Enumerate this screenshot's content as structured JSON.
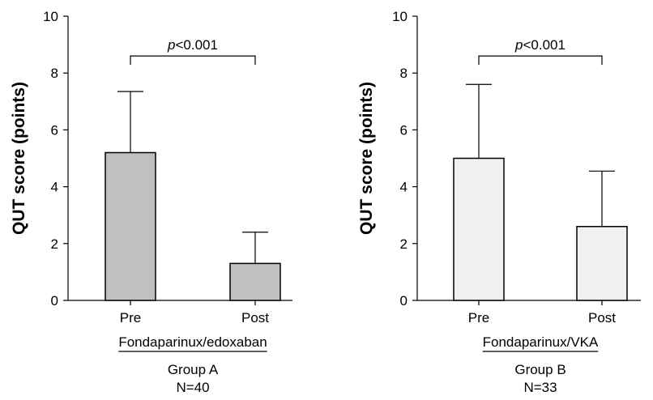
{
  "chart_data": [
    {
      "type": "bar",
      "ylabel": "QUT score (points)",
      "ylim": [
        0,
        10
      ],
      "yticks": [
        "0",
        "2",
        "4",
        "6",
        "8",
        "10"
      ],
      "categories": [
        "Pre",
        "Post"
      ],
      "values": [
        5.2,
        1.3
      ],
      "errors": [
        2.15,
        1.1
      ],
      "bar_color": "#c0c0c0",
      "drug": "Fondaparinux/edoxaban",
      "group": "Group A",
      "n": "N=40",
      "p_symbol": "p",
      "p_value": "<0.001"
    },
    {
      "type": "bar",
      "ylabel": "QUT score (points)",
      "ylim": [
        0,
        10
      ],
      "yticks": [
        "0",
        "2",
        "4",
        "6",
        "8",
        "10"
      ],
      "categories": [
        "Pre",
        "Post"
      ],
      "values": [
        5.0,
        2.6
      ],
      "errors": [
        2.6,
        1.95
      ],
      "bar_color": "#f0f0f0",
      "drug": "Fondaparinux/VKA",
      "group": "Group B",
      "n": "N=33",
      "p_symbol": "p",
      "p_value": "<0.001"
    }
  ]
}
